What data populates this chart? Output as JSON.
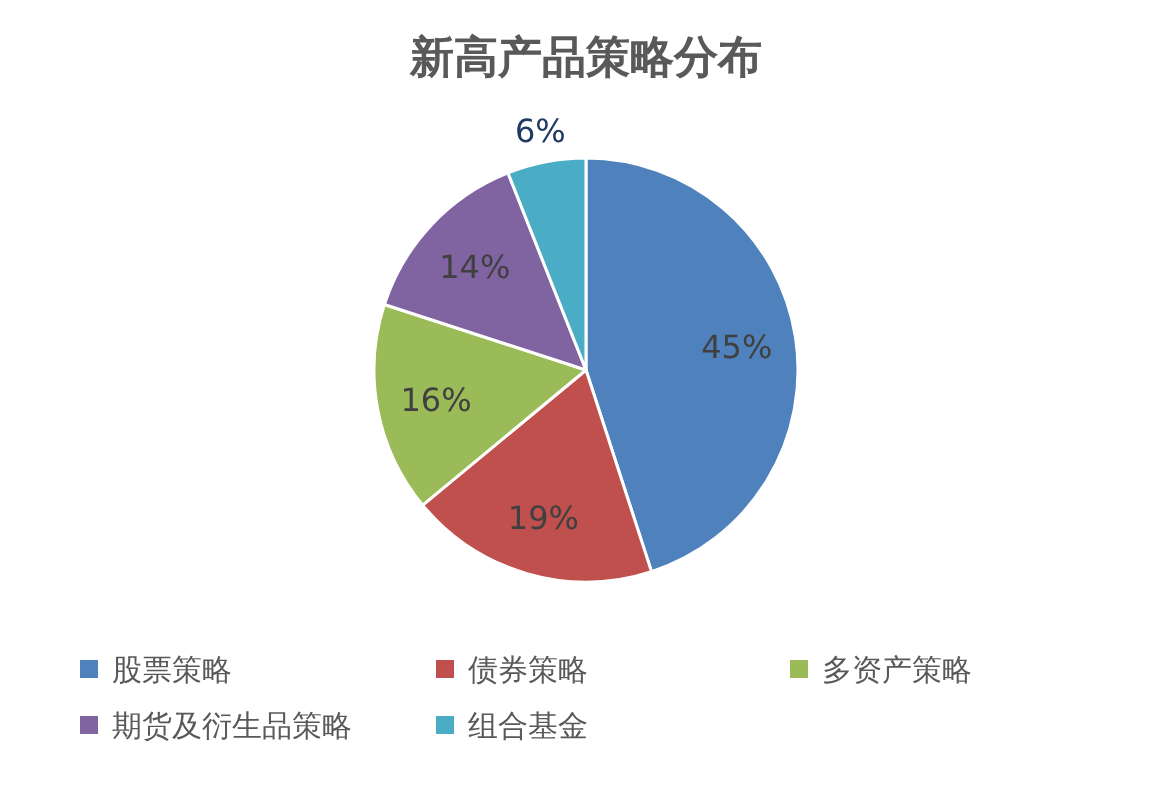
{
  "chart_data": {
    "type": "pie",
    "title": "新高产品策略分布",
    "categories": [
      "股票策略",
      "债券策略",
      "多资产策略",
      "期货及衍生品策略",
      "组合基金"
    ],
    "values": [
      45,
      19,
      16,
      14,
      6
    ],
    "colors": [
      "#4f81bd",
      "#c0504d",
      "#9bbb59",
      "#8064a2",
      "#4bacc6"
    ],
    "value_labels": [
      "45%",
      "19%",
      "16%",
      "14%",
      "6%"
    ],
    "legend": "bottom"
  }
}
